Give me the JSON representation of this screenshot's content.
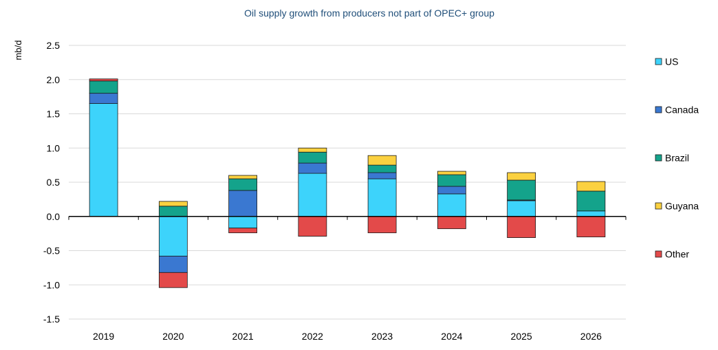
{
  "chart_data": {
    "type": "bar",
    "stacked": true,
    "title": "Oil supply growth from producers not part of OPEC+ group",
    "ylabel": "mb/d",
    "xlabel": "",
    "ylim": [
      -1.5,
      2.5
    ],
    "yticks": [
      2.5,
      2.0,
      1.5,
      1.0,
      0.5,
      0.0,
      -0.5,
      -1.0,
      -1.5
    ],
    "ytick_labels": [
      "2.5",
      "2.0",
      "1.5",
      "1.0",
      "0.5",
      "0.0",
      "-0.5",
      "-1.0",
      "-1.5"
    ],
    "grid": true,
    "legend_position": "right",
    "categories": [
      "2019",
      "2020",
      "2021",
      "2022",
      "2023",
      "2024",
      "2025",
      "2026"
    ],
    "series": [
      {
        "name": "US",
        "color": "#3dd3fb",
        "values": [
          1.65,
          -0.58,
          -0.17,
          0.63,
          0.55,
          0.33,
          0.23,
          0.08
        ]
      },
      {
        "name": "Canada",
        "color": "#3a78d1",
        "values": [
          0.15,
          -0.24,
          0.38,
          0.15,
          0.09,
          0.11,
          0.01,
          0.0
        ]
      },
      {
        "name": "Brazil",
        "color": "#14a38b",
        "values": [
          0.18,
          0.15,
          0.17,
          0.16,
          0.11,
          0.17,
          0.29,
          0.29
        ]
      },
      {
        "name": "Guyana",
        "color": "#fbd140",
        "values": [
          0.0,
          0.07,
          0.05,
          0.06,
          0.14,
          0.05,
          0.11,
          0.14
        ]
      },
      {
        "name": "Other",
        "color": "#e34a4a",
        "values": [
          0.03,
          -0.22,
          -0.07,
          -0.29,
          -0.24,
          -0.18,
          -0.31,
          -0.3
        ]
      }
    ]
  }
}
